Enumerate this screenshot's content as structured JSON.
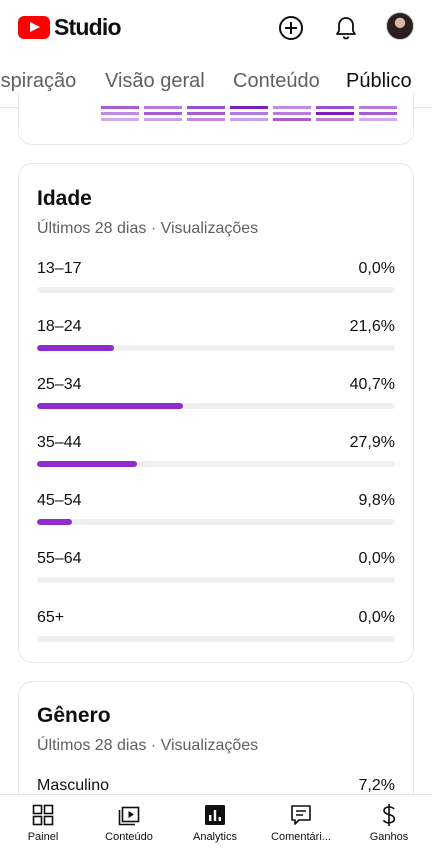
{
  "header": {
    "app_name": "Studio",
    "icons": [
      "youtube-logo",
      "create-icon",
      "notifications-icon",
      "avatar"
    ]
  },
  "tabs": [
    {
      "label": "Inspiração"
    },
    {
      "label": "Visão geral"
    },
    {
      "label": "Conteúdo"
    },
    {
      "label": "Público",
      "active": true
    }
  ],
  "age_card": {
    "title": "Idade",
    "subtitle": "Últimos 28 dias · Visualizações",
    "rows": [
      {
        "label": "13–17",
        "value": "0,0%",
        "percent": 0.0
      },
      {
        "label": "18–24",
        "value": "21,6%",
        "percent": 21.6
      },
      {
        "label": "25–34",
        "value": "40,7%",
        "percent": 40.7
      },
      {
        "label": "35–44",
        "value": "27,9%",
        "percent": 27.9
      },
      {
        "label": "45–54",
        "value": "9,8%",
        "percent": 9.8
      },
      {
        "label": "55–64",
        "value": "0,0%",
        "percent": 0.0
      },
      {
        "label": "65+",
        "value": "0,0%",
        "percent": 0.0
      }
    ]
  },
  "gender_card": {
    "title": "Gênero",
    "subtitle": "Últimos 28 dias · Visualizações",
    "rows": [
      {
        "label": "Masculino",
        "value": "7,2%"
      }
    ]
  },
  "bottom_nav": [
    {
      "label": "Painel",
      "icon": "dashboard-icon"
    },
    {
      "label": "Conteúdo",
      "icon": "content-icon"
    },
    {
      "label": "Analytics",
      "icon": "analytics-icon",
      "active": true
    },
    {
      "label": "Comentári...",
      "icon": "comments-icon"
    },
    {
      "label": "Ganhos",
      "icon": "earn-icon"
    }
  ],
  "colors": {
    "accent": "#8f2ccd",
    "track": "#efefef",
    "brand_red": "#ff0000"
  }
}
